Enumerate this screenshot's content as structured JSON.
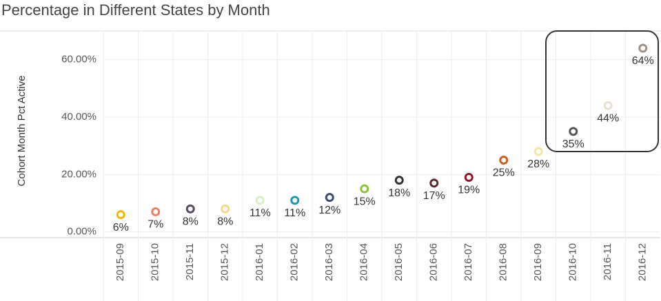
{
  "chart_data": {
    "type": "scatter",
    "title": "Percentage in Different States by Month",
    "y_label": "Cohort Month Pct Active",
    "categories": [
      "2015-09",
      "2015-10",
      "2015-11",
      "2015-12",
      "2016-01",
      "2016-02",
      "2016-03",
      "2016-04",
      "2016-05",
      "2016-06",
      "2016-07",
      "2016-08",
      "2016-09",
      "2016-10",
      "2016-11",
      "2016-12"
    ],
    "values": [
      6,
      7,
      8,
      8,
      11,
      11,
      12,
      15,
      18,
      17,
      19,
      25,
      28,
      35,
      44,
      64
    ],
    "value_labels": [
      "6%",
      "7%",
      "8%",
      "8%",
      "11%",
      "11%",
      "12%",
      "15%",
      "18%",
      "17%",
      "19%",
      "25%",
      "28%",
      "35%",
      "44%",
      "64%"
    ],
    "colors": [
      "#f2b50a",
      "#f08060",
      "#5a4a6a",
      "#f5d890",
      "#d8f0c0",
      "#1a9aaa",
      "#3a4a70",
      "#8cc040",
      "#333333",
      "#5a2a30",
      "#8a1a2a",
      "#c86020",
      "#f0e8a0",
      "#555555",
      "#e8e0d0",
      "#a09088"
    ],
    "ylim": [
      -2,
      70
    ],
    "yticks": [
      {
        "value": 0,
        "label": "0.00%"
      },
      {
        "value": 20,
        "label": "20.00%"
      },
      {
        "value": 40,
        "label": "40.00%"
      },
      {
        "value": 60,
        "label": "60.00%"
      }
    ],
    "grid": true
  }
}
